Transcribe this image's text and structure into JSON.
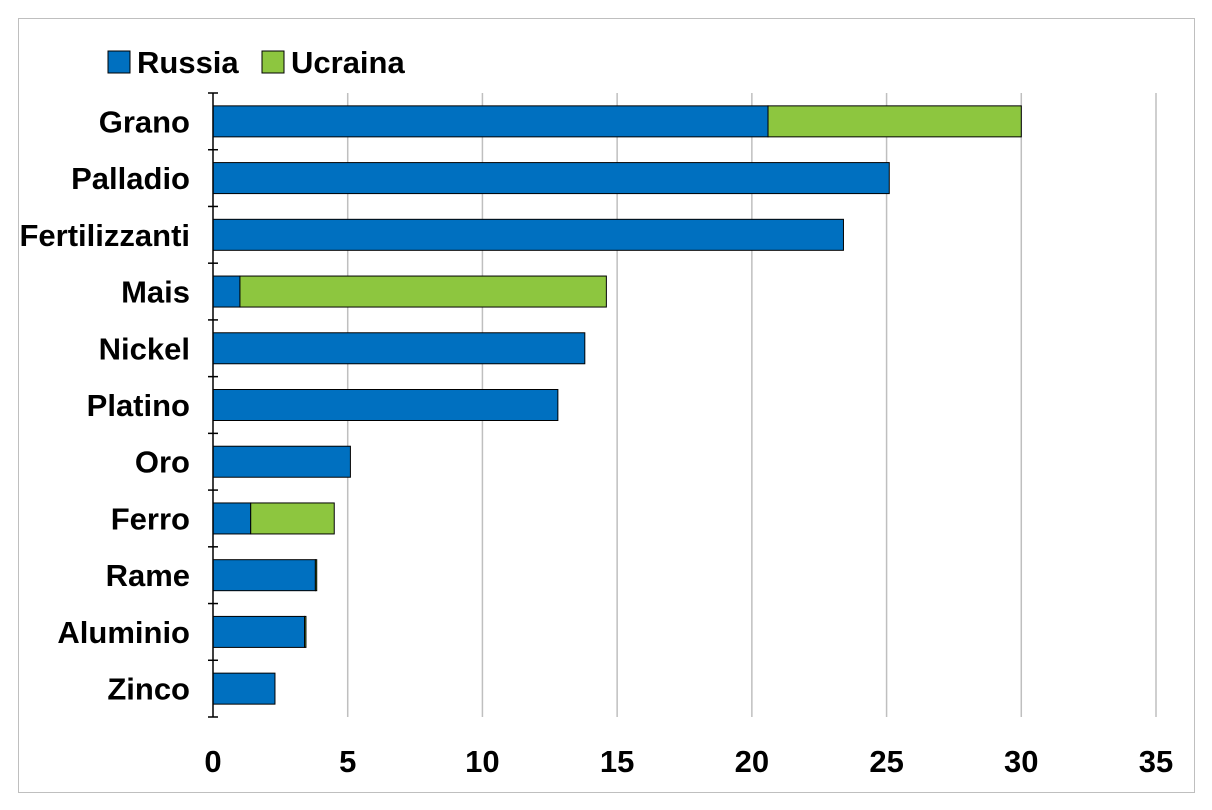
{
  "chart_data": {
    "type": "bar",
    "orientation": "horizontal",
    "stacked": true,
    "categories": [
      "Grano",
      "Palladio",
      "Fertilizzanti",
      "Mais",
      "Nickel",
      "Platino",
      "Oro",
      "Ferro",
      "Rame",
      "Aluminio",
      "Zinco"
    ],
    "series": [
      {
        "name": "Russia",
        "color": "#0070C0",
        "values": [
          20.6,
          25.1,
          23.4,
          1.0,
          13.8,
          12.8,
          5.1,
          1.4,
          3.8,
          3.4,
          2.3
        ]
      },
      {
        "name": "Ucraina",
        "color": "#8DC63F",
        "values": [
          9.4,
          0,
          0,
          13.6,
          0,
          0,
          0,
          3.1,
          0.05,
          0.05,
          0
        ]
      }
    ],
    "xlim": [
      0,
      35
    ],
    "xticks": [
      "0",
      "5",
      "10",
      "15",
      "20",
      "25",
      "30",
      "35"
    ],
    "grid": "vertical",
    "legend": "top-left",
    "title": "",
    "xlabel": "",
    "ylabel": ""
  }
}
